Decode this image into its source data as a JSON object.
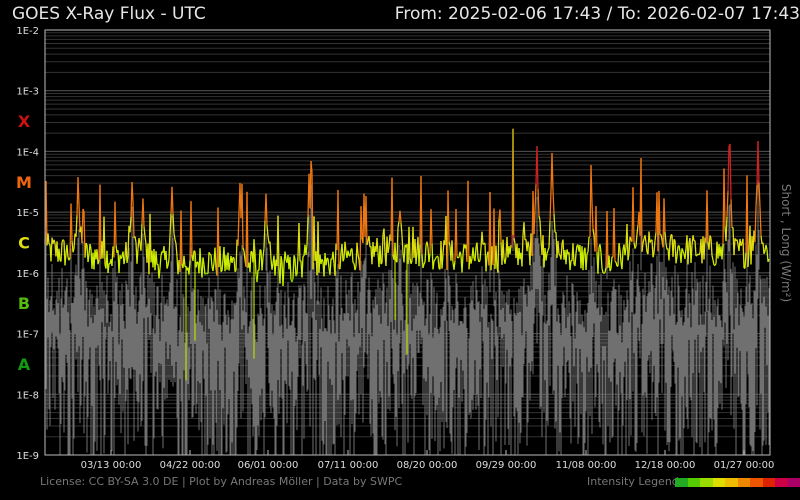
{
  "header": {
    "title": "GOES X-Ray Flux - UTC",
    "range": "From: 2025-02-06 17:43  /  To: 2026-02-07 17:43"
  },
  "footer": {
    "license": "License: CC BY-SA 3.0 DE | Plot by Andreas Möller | Data by SWPC",
    "legend_label": "Intensity Legend",
    "legend_colors": [
      "#22aa22",
      "#55cc00",
      "#99dd00",
      "#dddd00",
      "#eebb00",
      "#ee8800",
      "#ee5500",
      "#dd2200",
      "#cc0044",
      "#aa0066"
    ]
  },
  "chart_data": {
    "type": "line",
    "title": "GOES X-Ray Flux - UTC",
    "ylabel": "Short , Long (W/m²)",
    "yscale": "log",
    "ylim": [
      1e-09,
      0.01
    ],
    "y_ticks": [
      "1E-2",
      "1E-3",
      "1E-4",
      "1E-5",
      "1E-6",
      "1E-7",
      "1E-8",
      "1E-9"
    ],
    "x_ticks": [
      "03/13 00:00",
      "04/22 00:00",
      "06/01 00:00",
      "07/11 00:00",
      "08/20 00:00",
      "09/29 00:00",
      "11/08 00:00",
      "12/18 00:00",
      "01/27 00:00"
    ],
    "flare_classes": [
      {
        "label": "X",
        "color": "#cc1111"
      },
      {
        "label": "M",
        "color": "#ee6611"
      },
      {
        "label": "C",
        "color": "#dddd11"
      },
      {
        "label": "B",
        "color": "#55bb11"
      },
      {
        "label": "A",
        "color": "#119911"
      }
    ],
    "series": [
      {
        "name": "Long",
        "color": "#ccdd00",
        "baseline": [
          2e-06,
          1.6e-06,
          1.5e-06,
          1.2e-06,
          1.3e-06,
          1.1e-06,
          9e-07,
          1.2e-06,
          1.8e-06,
          2e-06,
          1.6e-06,
          1.4e-06,
          2e-06,
          1.7e-06,
          1.2e-06,
          2.2e-06,
          2e-06,
          1.8e-06,
          1.9e-06
        ],
        "peaks": [
          {
            "x": 0.045,
            "y": 4.5e-05
          },
          {
            "x": 0.12,
            "y": 5e-05
          },
          {
            "x": 0.135,
            "y": 2e-05
          },
          {
            "x": 0.175,
            "y": 3e-05
          },
          {
            "x": 0.27,
            "y": 5e-05
          },
          {
            "x": 0.305,
            "y": 3e-05
          },
          {
            "x": 0.365,
            "y": 5e-05
          },
          {
            "x": 0.49,
            "y": 1.5e-05
          },
          {
            "x": 0.68,
            "y": 0.00018
          },
          {
            "x": 0.7,
            "y": 0.0001
          },
          {
            "x": 0.755,
            "y": 2e-05
          },
          {
            "x": 0.82,
            "y": 1.5e-05
          },
          {
            "x": 0.945,
            "y": 0.00015
          },
          {
            "x": 0.985,
            "y": 0.00015
          }
        ]
      },
      {
        "name": "Short",
        "color": "#777777"
      }
    ]
  }
}
